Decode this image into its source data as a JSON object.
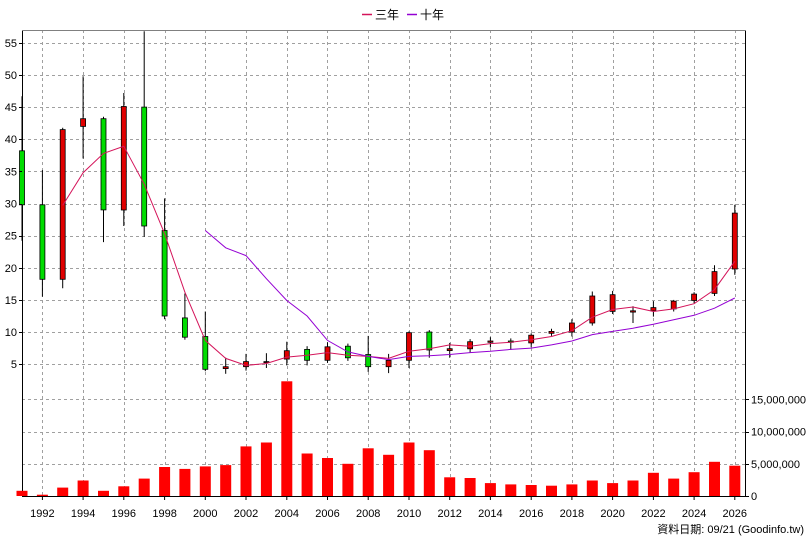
{
  "chart_data": {
    "type": "candlestick+bar",
    "legend": [
      {
        "name": "三年",
        "color": "#d4145a"
      },
      {
        "name": "十年",
        "color": "#9400d3"
      }
    ],
    "legend_position": "top-center",
    "grid": true,
    "price_axis": {
      "ylim": [
        3,
        57
      ],
      "ticks": [
        5,
        10,
        15,
        20,
        25,
        30,
        35,
        40,
        45,
        50,
        55
      ],
      "tick_labels": [
        "5",
        "10",
        "15",
        "20",
        "25",
        "30",
        "35",
        "40",
        "45",
        "50",
        "55"
      ],
      "side": "left"
    },
    "volume_axis": {
      "ylim": [
        0,
        18000000
      ],
      "ticks": [
        0,
        5000000,
        10000000,
        15000000
      ],
      "tick_labels": [
        "0",
        "5,000,000",
        "10,000,000",
        "15,000,000"
      ],
      "side": "right"
    },
    "x_axis": {
      "xlim": [
        1991,
        2026.5
      ],
      "ticks": [
        1992,
        1994,
        1996,
        1998,
        2000,
        2002,
        2004,
        2006,
        2008,
        2010,
        2012,
        2014,
        2016,
        2018,
        2020,
        2022,
        2024,
        2026
      ],
      "tick_labels": [
        "1992",
        "1994",
        "1996",
        "1998",
        "2000",
        "2002",
        "2004",
        "2006",
        "2008",
        "2010",
        "2012",
        "2014",
        "2016",
        "2018",
        "2020",
        "2022",
        "2024",
        "2026"
      ]
    },
    "up_color": "#e00000",
    "down_color": "#00dd00",
    "candles": [
      {
        "year": 1991,
        "open": 38.2,
        "high": 46.7,
        "low": 24.2,
        "close": 29.8
      },
      {
        "year": 1992,
        "open": 29.8,
        "high": 35.2,
        "low": 15.5,
        "close": 18.2
      },
      {
        "year": 1993,
        "open": 18.2,
        "high": 41.8,
        "low": 16.8,
        "close": 41.5
      },
      {
        "year": 1994,
        "open": 42.0,
        "high": 49.8,
        "low": 37.0,
        "close": 43.2
      },
      {
        "year": 1995,
        "open": 43.2,
        "high": 43.5,
        "low": 24.0,
        "close": 29.0
      },
      {
        "year": 1996,
        "open": 29.0,
        "high": 47.2,
        "low": 26.5,
        "close": 45.1
      },
      {
        "year": 1997,
        "open": 45.0,
        "high": 56.8,
        "low": 24.8,
        "close": 26.5
      },
      {
        "year": 1998,
        "open": 25.8,
        "high": 30.8,
        "low": 12.0,
        "close": 12.5
      },
      {
        "year": 1999,
        "open": 12.2,
        "high": 16.0,
        "low": 8.8,
        "close": 9.2
      },
      {
        "year": 2000,
        "open": 9.3,
        "high": 13.2,
        "low": 3.9,
        "close": 4.2
      },
      {
        "year": 2001,
        "open": 4.3,
        "high": 6.0,
        "low": 3.5,
        "close": 4.6
      },
      {
        "year": 2002,
        "open": 4.6,
        "high": 6.6,
        "low": 4.0,
        "close": 5.4
      },
      {
        "year": 2003,
        "open": 5.3,
        "high": 6.7,
        "low": 4.4,
        "close": 5.4
      },
      {
        "year": 2004,
        "open": 5.8,
        "high": 8.5,
        "low": 4.8,
        "close": 7.1
      },
      {
        "year": 2005,
        "open": 7.3,
        "high": 7.8,
        "low": 4.8,
        "close": 5.6
      },
      {
        "year": 2006,
        "open": 5.6,
        "high": 8.4,
        "low": 5.2,
        "close": 7.7
      },
      {
        "year": 2007,
        "open": 7.8,
        "high": 8.2,
        "low": 5.5,
        "close": 6.0
      },
      {
        "year": 2008,
        "open": 6.5,
        "high": 9.4,
        "low": 3.8,
        "close": 4.6
      },
      {
        "year": 2009,
        "open": 4.6,
        "high": 6.6,
        "low": 3.6,
        "close": 5.6
      },
      {
        "year": 2010,
        "open": 5.6,
        "high": 10.1,
        "low": 4.4,
        "close": 9.9
      },
      {
        "year": 2011,
        "open": 10.0,
        "high": 10.3,
        "low": 6.0,
        "close": 7.2
      },
      {
        "year": 2012,
        "open": 7.1,
        "high": 8.3,
        "low": 6.0,
        "close": 7.4
      },
      {
        "year": 2013,
        "open": 7.4,
        "high": 8.9,
        "low": 6.8,
        "close": 8.5
      },
      {
        "year": 2014,
        "open": 8.4,
        "high": 9.2,
        "low": 7.6,
        "close": 8.6
      },
      {
        "year": 2015,
        "open": 8.6,
        "high": 9.0,
        "low": 7.2,
        "close": 8.4
      },
      {
        "year": 2016,
        "open": 8.3,
        "high": 9.8,
        "low": 7.6,
        "close": 9.5
      },
      {
        "year": 2017,
        "open": 9.8,
        "high": 10.5,
        "low": 9.4,
        "close": 10.1
      },
      {
        "year": 2018,
        "open": 10.0,
        "high": 12.0,
        "low": 9.3,
        "close": 11.4
      },
      {
        "year": 2019,
        "open": 11.4,
        "high": 16.3,
        "low": 11.0,
        "close": 15.6
      },
      {
        "year": 2020,
        "open": 13.2,
        "high": 16.4,
        "low": 12.8,
        "close": 15.8
      },
      {
        "year": 2021,
        "open": 13.1,
        "high": 14.0,
        "low": 11.4,
        "close": 13.3
      },
      {
        "year": 2022,
        "open": 13.3,
        "high": 14.8,
        "low": 12.4,
        "close": 13.8
      },
      {
        "year": 2023,
        "open": 13.6,
        "high": 15.0,
        "low": 13.2,
        "close": 14.8
      },
      {
        "year": 2024,
        "open": 14.9,
        "high": 16.2,
        "low": 14.5,
        "close": 15.9
      },
      {
        "year": 2025,
        "open": 16.0,
        "high": 20.4,
        "low": 15.6,
        "close": 19.4
      },
      {
        "year": 2026,
        "open": 19.8,
        "high": 29.8,
        "low": 18.9,
        "close": 28.5
      }
    ],
    "series": [
      {
        "name": "三年",
        "color": "#d4145a",
        "x": [
          1993,
          1994,
          1995,
          1996,
          1997,
          1998,
          1999,
          2000,
          2001,
          2002,
          2003,
          2004,
          2005,
          2006,
          2007,
          2008,
          2009,
          2010,
          2011,
          2012,
          2013,
          2014,
          2015,
          2016,
          2017,
          2018,
          2019,
          2020,
          2021,
          2022,
          2023,
          2024,
          2025,
          2026
        ],
        "y": [
          29.7,
          34.8,
          37.8,
          38.9,
          33.0,
          25.3,
          16.2,
          8.7,
          5.9,
          4.8,
          5.1,
          6.1,
          6.4,
          6.8,
          6.4,
          6.2,
          5.9,
          7.0,
          7.4,
          8.0,
          7.8,
          8.2,
          8.4,
          8.8,
          9.3,
          10.2,
          12.3,
          13.5,
          13.9,
          13.2,
          13.6,
          14.4,
          16.6,
          21.0
        ]
      },
      {
        "name": "十年",
        "color": "#9400d3",
        "x": [
          2000,
          2001,
          2002,
          2003,
          2004,
          2005,
          2006,
          2007,
          2008,
          2009,
          2010,
          2011,
          2012,
          2013,
          2014,
          2015,
          2016,
          2017,
          2018,
          2019,
          2020,
          2021,
          2022,
          2023,
          2024,
          2025,
          2026
        ],
        "y": [
          25.8,
          23.1,
          21.9,
          18.3,
          14.9,
          12.5,
          8.7,
          6.9,
          6.2,
          5.7,
          6.2,
          6.3,
          6.5,
          6.8,
          7.0,
          7.3,
          7.5,
          8.0,
          8.6,
          9.6,
          10.1,
          10.6,
          11.2,
          11.9,
          12.6,
          13.7,
          15.3
        ]
      }
    ],
    "volume": {
      "years": [
        1991,
        1992,
        1993,
        1994,
        1995,
        1996,
        1997,
        1998,
        1999,
        2000,
        2001,
        2002,
        2003,
        2004,
        2005,
        2006,
        2007,
        2008,
        2009,
        2010,
        2011,
        2012,
        2013,
        2014,
        2015,
        2016,
        2017,
        2018,
        2019,
        2020,
        2021,
        2022,
        2023,
        2024,
        2025,
        2026
      ],
      "values": [
        800000,
        200000,
        1300000,
        2400000,
        800000,
        1500000,
        2700000,
        4500000,
        4200000,
        4600000,
        4800000,
        7700000,
        8300000,
        17800000,
        6600000,
        5900000,
        5000000,
        7400000,
        6400000,
        8300000,
        7100000,
        2900000,
        2800000,
        2000000,
        1800000,
        1700000,
        1600000,
        1800000,
        2400000,
        2000000,
        2400000,
        3600000,
        2700000,
        3700000,
        5300000,
        4700000
      ],
      "color": "#ff0000"
    },
    "footer": "資料日期: 09/21 (Goodinfo.tw)"
  }
}
